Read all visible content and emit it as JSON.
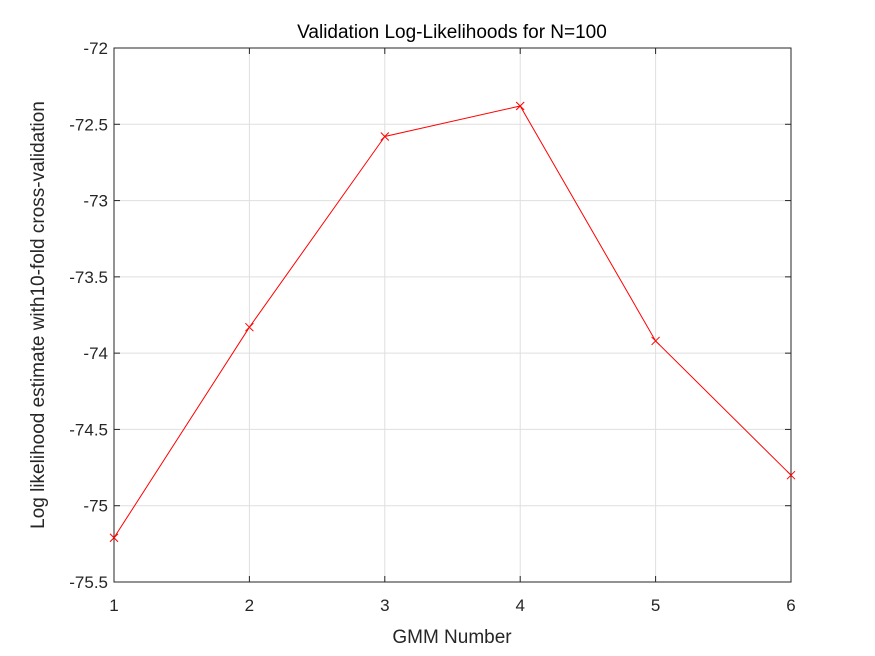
{
  "chart_data": {
    "type": "line",
    "title": "Validation Log-Likelihoods for N=100",
    "xlabel": "GMM Number",
    "ylabel": "Log likelihood estimate with10-fold cross-validation",
    "x": [
      1,
      2,
      3,
      4,
      5,
      6
    ],
    "series": [
      {
        "values": [
          -75.21,
          -73.83,
          -72.58,
          -72.38,
          -73.92,
          -74.8
        ]
      }
    ],
    "xlim": [
      1,
      6
    ],
    "ylim": [
      -75.5,
      -72
    ],
    "xticks": [
      "1",
      "2",
      "3",
      "4",
      "5",
      "6"
    ],
    "yticks": [
      "-72",
      "-72.5",
      "-73",
      "-73.5",
      "-74",
      "-74.5",
      "-75",
      "-75.5"
    ],
    "grid": true,
    "marker": "x",
    "line_color": "#ff0000",
    "grid_color": "#dfdfdf",
    "axis_color": "#262626"
  }
}
